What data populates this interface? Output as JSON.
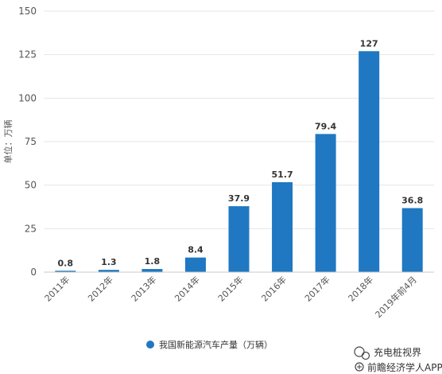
{
  "chart_data": {
    "type": "bar",
    "categories": [
      "2011年",
      "2012年",
      "2013年",
      "2014年",
      "2015年",
      "2016年",
      "2017年",
      "2018年",
      "2019年前4月"
    ],
    "series": [
      {
        "name": "我国新能源汽车产量（万辆）",
        "values": [
          0.8,
          1.3,
          1.8,
          8.4,
          37.9,
          51.7,
          79.4,
          127,
          36.8
        ]
      }
    ],
    "data_labels": [
      "0.8",
      "1.3",
      "1.8",
      "8.4",
      "37.9",
      "51.7",
      "79.4",
      "127",
      "36.8"
    ],
    "ylabel": "单位：万辆",
    "xlabel": "",
    "ylim": [
      0,
      150
    ],
    "yticks": [
      0,
      25,
      50,
      75,
      100,
      125,
      150
    ],
    "ytick_labels": [
      "0",
      "25",
      "50",
      "75",
      "100",
      "125",
      "150"
    ],
    "grid": true,
    "legend_position": "bottom-center",
    "bar_color": "#1f78c1"
  },
  "watermark": {
    "source_line1": "充电桩视界",
    "source_line2": "前瞻经济学人APP"
  }
}
